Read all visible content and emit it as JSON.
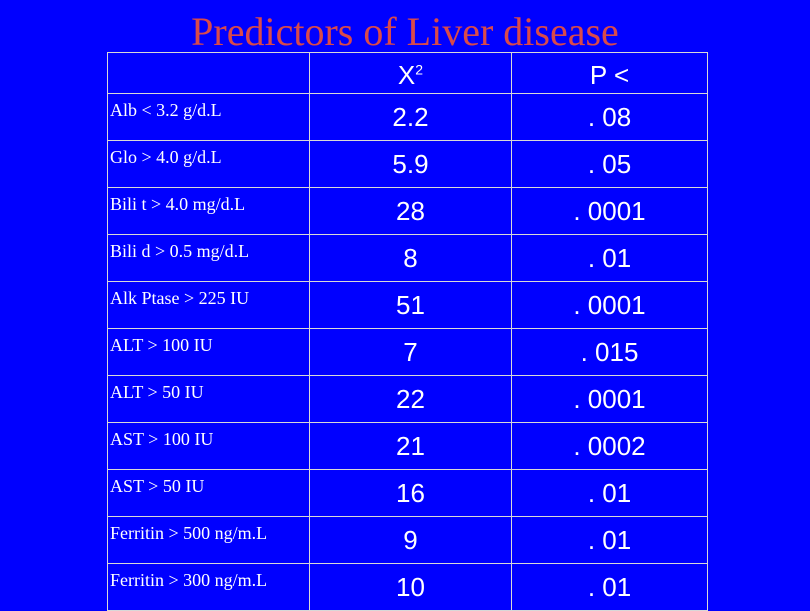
{
  "title": "Predictors of Liver disease",
  "columns": {
    "label": "",
    "chi_base": "X",
    "chi_sup": "2",
    "p": "P <"
  },
  "rows": [
    {
      "label": "Alb < 3.2 g/d.L",
      "chi": "2.2",
      "p": ". 08"
    },
    {
      "label": "Glo > 4.0 g/d.L",
      "chi": "5.9",
      "p": ". 05"
    },
    {
      "label": "Bili t > 4.0 mg/d.L",
      "chi": "28",
      "p": ". 0001"
    },
    {
      "label": "Bili d > 0.5 mg/d.L",
      "chi": "8",
      "p": ". 01"
    },
    {
      "label": "Alk Ptase > 225 IU",
      "chi": "51",
      "p": ". 0001"
    },
    {
      "label": "ALT > 100 IU",
      "chi": "7",
      "p": ". 015"
    },
    {
      "label": "ALT > 50 IU",
      "chi": "22",
      "p": ". 0001"
    },
    {
      "label": "AST > 100 IU",
      "chi": "21",
      "p": ". 0002"
    },
    {
      "label": "AST > 50 IU",
      "chi": "16",
      "p": ". 01"
    },
    {
      "label": "Ferritin > 500 ng/m.L",
      "chi": "9",
      "p": ". 01"
    },
    {
      "label": "Ferritin > 300 ng/m.L",
      "chi": "10",
      "p": ". 01"
    }
  ],
  "colors": {
    "background": "#0000ff",
    "title": "#d94a4a",
    "text": "#ffffff",
    "border": "#d8d8d8"
  }
}
